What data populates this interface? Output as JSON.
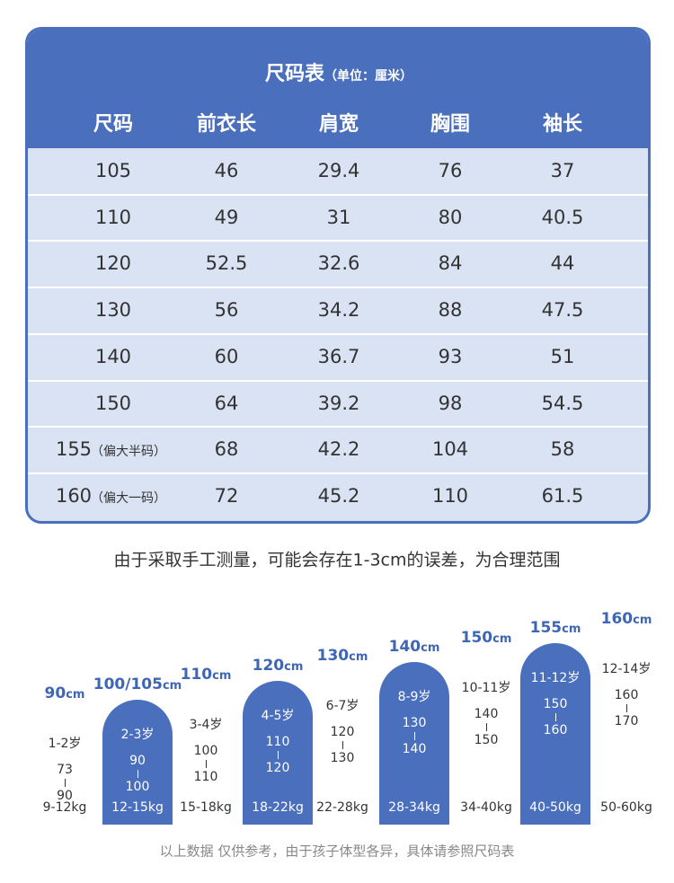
{
  "table": {
    "title": "尺码表",
    "unit": "（单位：厘米）",
    "headers": [
      "尺码",
      "前衣长",
      "肩宽",
      "胸围",
      "袖长"
    ],
    "rows": [
      {
        "size": "105",
        "values": [
          "46",
          "29.4",
          "76",
          "37"
        ]
      },
      {
        "size": "110",
        "values": [
          "49",
          "31",
          "80",
          "40.5"
        ]
      },
      {
        "size": "120",
        "values": [
          "52.5",
          "32.6",
          "84",
          "44"
        ]
      },
      {
        "size": "130",
        "values": [
          "56",
          "34.2",
          "88",
          "47.5"
        ]
      },
      {
        "size": "140",
        "values": [
          "60",
          "36.7",
          "93",
          "51"
        ]
      },
      {
        "size": "150",
        "values": [
          "64",
          "39.2",
          "98",
          "54.5"
        ]
      },
      {
        "size": "155",
        "note": "（偏大半码）",
        "values": [
          "68",
          "42.2",
          "104",
          "58"
        ]
      },
      {
        "size": "160",
        "note": "（偏大一码）",
        "values": [
          "72",
          "45.2",
          "110",
          "61.5"
        ]
      }
    ]
  },
  "note": "由于采取手工测量，可能会存在1-3cm的误差，为合理范围",
  "growth": {
    "unit": "cm",
    "columns": [
      {
        "size": "90",
        "age": "1-2岁",
        "range": [
          "73",
          "90"
        ],
        "weight": "9-12kg"
      },
      {
        "size": "100/105",
        "age": "2-3岁",
        "range": [
          "90",
          "100"
        ],
        "weight": "12-15kg"
      },
      {
        "size": "110",
        "age": "3-4岁",
        "range": [
          "100",
          "110"
        ],
        "weight": "15-18kg"
      },
      {
        "size": "120",
        "age": "4-5岁",
        "range": [
          "110",
          "120"
        ],
        "weight": "18-22kg"
      },
      {
        "size": "130",
        "age": "6-7岁",
        "range": [
          "120",
          "130"
        ],
        "weight": "22-28kg"
      },
      {
        "size": "140",
        "age": "8-9岁",
        "range": [
          "130",
          "140"
        ],
        "weight": "28-34kg"
      },
      {
        "size": "150",
        "age": "10-11岁",
        "range": [
          "140",
          "150"
        ],
        "weight": "34-40kg"
      },
      {
        "size": "155",
        "age": "11-12岁",
        "range": [
          "150",
          "160"
        ],
        "weight": "40-50kg"
      },
      {
        "size": "160",
        "age": "12-14岁",
        "range": [
          "160",
          "170"
        ],
        "weight": "50-60kg"
      }
    ]
  },
  "footer": "以上数据 仅供参考，由于孩子体型各异，具体请参照尺码表"
}
